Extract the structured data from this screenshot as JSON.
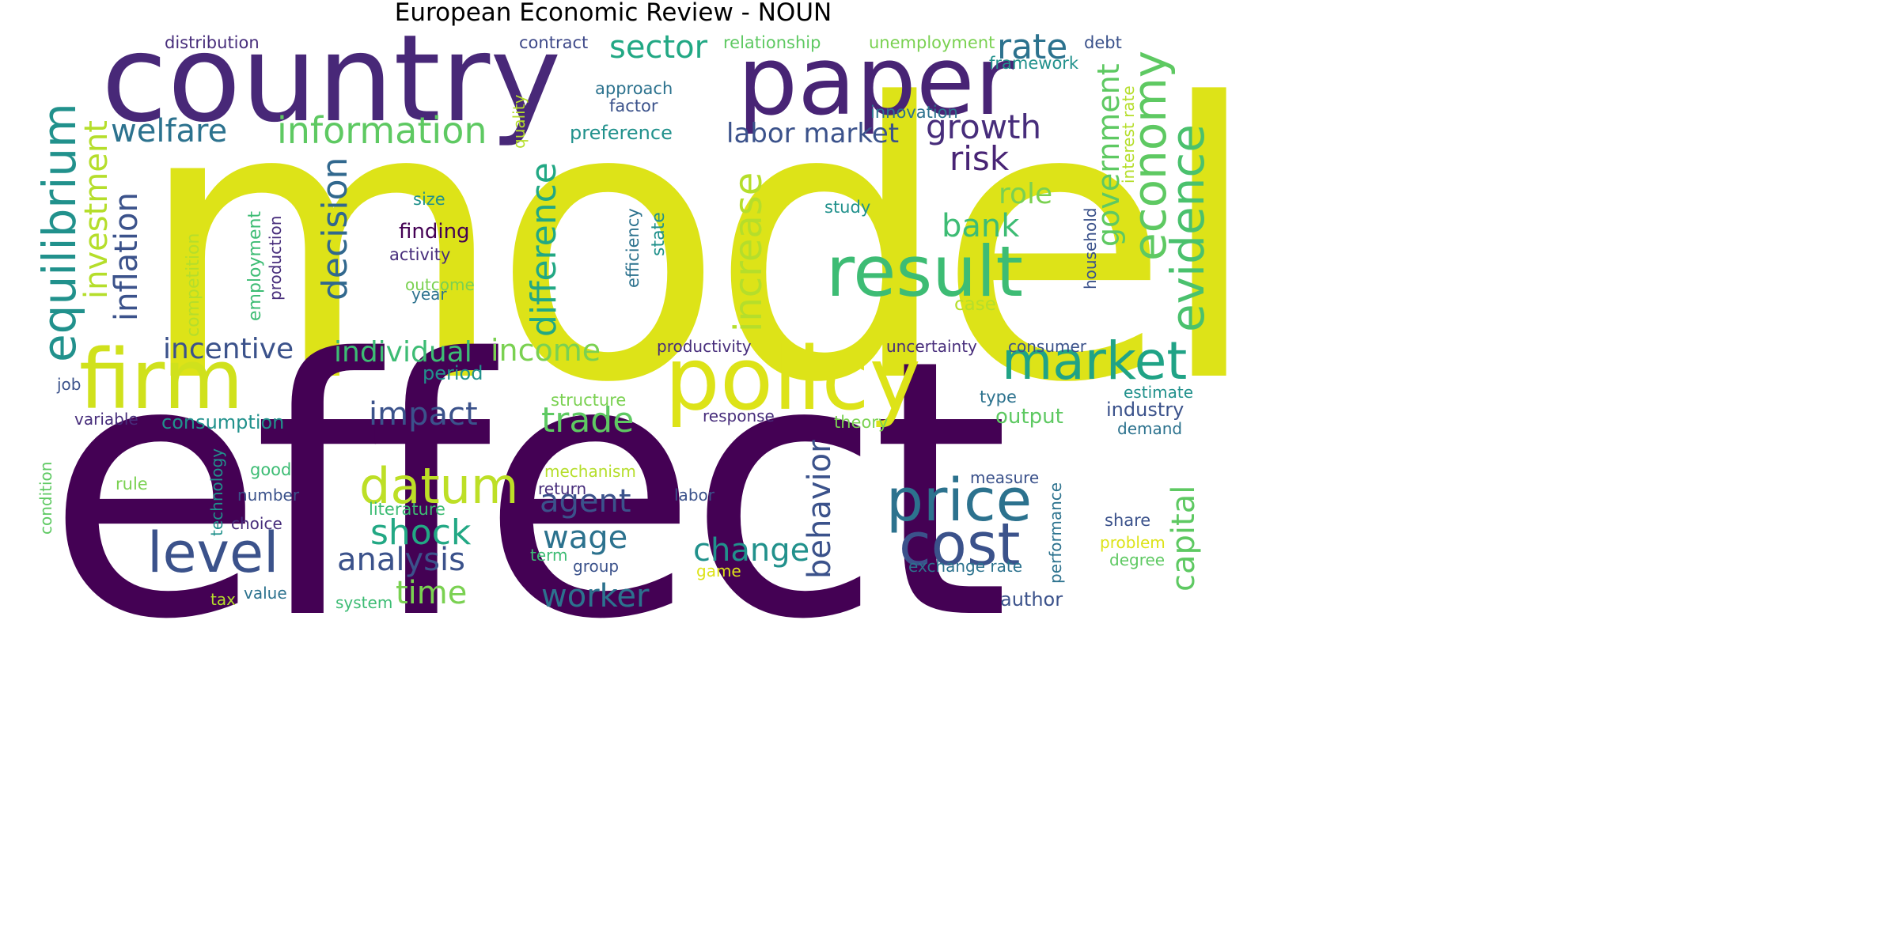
{
  "title": "European Economic Review - NOUN",
  "words": {
    "model": "model",
    "effect": "effect",
    "country": "country",
    "paper": "paper",
    "firm": "firm",
    "policy": "policy",
    "result": "result",
    "equilibrium": "equilibrium",
    "economy": "economy",
    "evidence": "evidence",
    "market": "market",
    "price": "price",
    "cost": "cost",
    "level": "level",
    "datum": "datum",
    "information": "information",
    "welfare": "welfare",
    "sector": "sector",
    "rate": "rate",
    "growth": "growth",
    "risk": "risk",
    "government": "government",
    "bank": "bank",
    "role": "role",
    "increase": "increase",
    "difference": "difference",
    "decision": "decision",
    "investment": "investment",
    "inflation": "inflation",
    "labor_market": "labor market",
    "incentive": "incentive",
    "individual": "individual",
    "income": "income",
    "impact": "impact",
    "trade": "trade",
    "shock": "shock",
    "analysis": "analysis",
    "agent": "agent",
    "wage": "wage",
    "time": "time",
    "worker": "worker",
    "change": "change",
    "behavior": "behavior",
    "capital": "capital",
    "distribution": "distribution",
    "contract": "contract",
    "relationship": "relationship",
    "unemployment": "unemployment",
    "debt": "debt",
    "framework": "framework",
    "approach": "approach",
    "factor": "factor",
    "preference": "preference",
    "quality": "quality",
    "innovation": "innovation",
    "interest_rate": "interest rate",
    "size": "size",
    "finding": "finding",
    "activity": "activity",
    "outcome": "outcome",
    "year": "year",
    "study": "study",
    "household": "household",
    "efficiency": "efficiency",
    "state": "state",
    "competition": "competition",
    "employment": "employment",
    "production": "production",
    "case": "case",
    "productivity": "productivity",
    "uncertainty": "uncertainty",
    "consumer": "consumer",
    "period": "period",
    "job": "job",
    "estimate": "estimate",
    "industry": "industry",
    "type": "type",
    "demand": "demand",
    "structure": "structure",
    "variable": "variable",
    "consumption": "consumption",
    "response": "response",
    "theory": "theory",
    "output": "output",
    "condition": "condition",
    "technology": "technology",
    "good": "good",
    "rule": "rule",
    "number": "number",
    "mechanism": "mechanism",
    "return": "return",
    "labor": "labor",
    "measure": "measure",
    "performance": "performance",
    "literature": "literature",
    "choice": "choice",
    "share": "share",
    "problem": "problem",
    "term": "term",
    "group": "group",
    "game": "game",
    "degree": "degree",
    "exchange_rate": "exchange rate",
    "tax": "tax",
    "value": "value",
    "system": "system",
    "author": "author"
  }
}
